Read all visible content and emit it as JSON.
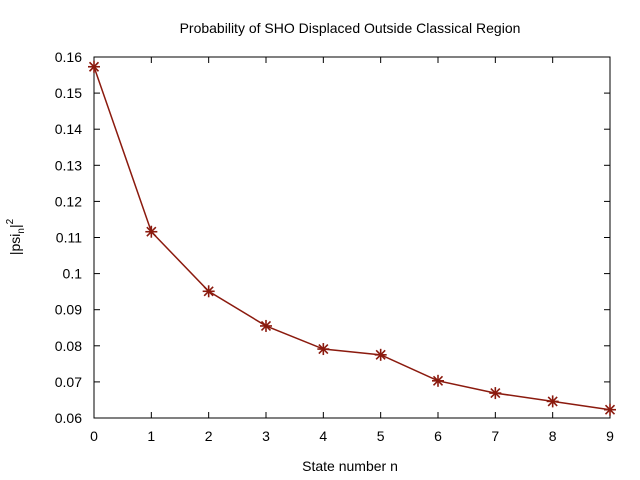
{
  "chart_data": {
    "type": "line",
    "title": "Probability of SHO Displaced Outside Classical Region",
    "xlabel": "State number n",
    "ylabel": {
      "base": "|psi",
      "subscript": "n",
      "suffix": "|",
      "superscript": "2"
    },
    "xlim": [
      0,
      9
    ],
    "ylim": [
      0.06,
      0.16
    ],
    "xticks": [
      "0",
      "1",
      "2",
      "3",
      "4",
      "5",
      "6",
      "7",
      "8",
      "9"
    ],
    "yticks": [
      "0.06",
      "0.07",
      "0.08",
      "0.09",
      "0.1",
      "0.11",
      "0.12",
      "0.13",
      "0.14",
      "0.15",
      "0.16"
    ],
    "grid": false,
    "marker": "asterisk",
    "series": [
      {
        "color": "#8b1a0e",
        "x": [
          0,
          1,
          2,
          3,
          4,
          5,
          6,
          7,
          8,
          9
        ],
        "y": [
          0.1573,
          0.1116,
          0.0951,
          0.0855,
          0.0791,
          0.0775,
          0.0703,
          0.0669,
          0.0646,
          0.0623
        ]
      }
    ]
  }
}
